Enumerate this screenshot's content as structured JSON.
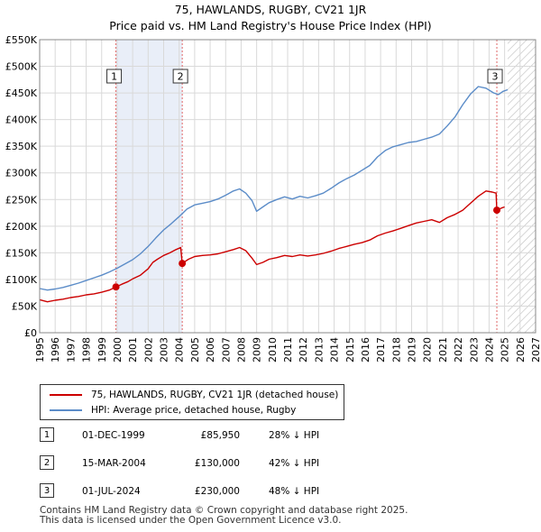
{
  "title_line1": "75, HAWLANDS, RUGBY, CV21 1JR",
  "title_line2": "Price paid vs. HM Land Registry's House Price Index (HPI)",
  "chart_data": {
    "type": "line",
    "title": "75, HAWLANDS, RUGBY, CV21 1JR — Price paid vs. HM Land Registry's House Price Index (HPI)",
    "xlabel": "",
    "ylabel": "",
    "xlim": [
      1995,
      2027
    ],
    "ylim": [
      0,
      550000
    ],
    "x_ticks": [
      "1995",
      "1996",
      "1997",
      "1998",
      "1999",
      "2000",
      "2001",
      "2002",
      "2003",
      "2004",
      "2005",
      "2006",
      "2007",
      "2008",
      "2009",
      "2010",
      "2011",
      "2012",
      "2013",
      "2014",
      "2015",
      "2016",
      "2017",
      "2018",
      "2019",
      "2020",
      "2021",
      "2022",
      "2023",
      "2024",
      "2025",
      "2026",
      "2027"
    ],
    "y_ticks": [
      {
        "value": 0,
        "label": "£0"
      },
      {
        "value": 50000,
        "label": "£50K"
      },
      {
        "value": 100000,
        "label": "£100K"
      },
      {
        "value": 150000,
        "label": "£150K"
      },
      {
        "value": 200000,
        "label": "£200K"
      },
      {
        "value": 250000,
        "label": "£250K"
      },
      {
        "value": 300000,
        "label": "£300K"
      },
      {
        "value": 350000,
        "label": "£350K"
      },
      {
        "value": 400000,
        "label": "£400K"
      },
      {
        "value": 450000,
        "label": "£450K"
      },
      {
        "value": 500000,
        "label": "£500K"
      },
      {
        "value": 550000,
        "label": "£550K"
      }
    ],
    "grid": true,
    "shaded_ranges": [
      [
        1999.92,
        2004.2
      ]
    ],
    "forecast_start": 2025.2,
    "series": [
      {
        "name": "75, HAWLANDS, RUGBY, CV21 1JR (detached house)",
        "color": "#cc0000",
        "x": [
          1995.0,
          1995.5,
          1996.0,
          1996.5,
          1997.0,
          1997.5,
          1998.0,
          1998.5,
          1999.0,
          1999.5,
          1999.92,
          2000.3,
          2000.7,
          2001.0,
          2001.5,
          2002.0,
          2002.3,
          2002.6,
          2003.0,
          2003.4,
          2003.8,
          2004.1,
          2004.2,
          2004.35,
          2004.6,
          2005.0,
          2005.5,
          2006.0,
          2006.5,
          2007.0,
          2007.5,
          2007.9,
          2008.3,
          2008.7,
          2009.0,
          2009.4,
          2009.8,
          2010.3,
          2010.8,
          2011.3,
          2011.8,
          2012.3,
          2012.8,
          2013.3,
          2013.8,
          2014.3,
          2014.8,
          2015.3,
          2015.8,
          2016.3,
          2016.8,
          2017.3,
          2017.8,
          2018.3,
          2018.8,
          2019.3,
          2019.8,
          2020.3,
          2020.8,
          2021.3,
          2021.8,
          2022.3,
          2022.8,
          2023.3,
          2023.8,
          2024.2,
          2024.45,
          2024.5,
          2024.8,
          2025.0
        ],
        "values": [
          62000,
          58000,
          61000,
          63000,
          66000,
          68000,
          71000,
          73000,
          76000,
          80000,
          85950,
          91000,
          96000,
          101000,
          108000,
          120000,
          132000,
          138000,
          145000,
          150000,
          156000,
          160000,
          130000,
          133000,
          138000,
          143000,
          145000,
          146000,
          148000,
          152000,
          156000,
          160000,
          154000,
          140000,
          128000,
          132000,
          138000,
          141000,
          145000,
          143000,
          146000,
          144000,
          146000,
          149000,
          153000,
          158000,
          162000,
          166000,
          169000,
          174000,
          182000,
          187000,
          191000,
          196000,
          201000,
          206000,
          209000,
          212000,
          207000,
          216000,
          222000,
          230000,
          243000,
          256000,
          266000,
          264000,
          262000,
          230000,
          234000,
          236000
        ]
      },
      {
        "name": "HPI: Average price, detached house, Rugby",
        "color": "#5b8cc8",
        "x": [
          1995.0,
          1995.5,
          1996.0,
          1996.5,
          1997.0,
          1997.5,
          1998.0,
          1998.5,
          1999.0,
          1999.5,
          2000.0,
          2000.5,
          2001.0,
          2001.5,
          2002.0,
          2002.5,
          2003.0,
          2003.5,
          2004.0,
          2004.5,
          2005.0,
          2005.5,
          2006.0,
          2006.5,
          2007.0,
          2007.5,
          2007.9,
          2008.3,
          2008.7,
          2009.0,
          2009.4,
          2009.8,
          2010.3,
          2010.8,
          2011.3,
          2011.8,
          2012.3,
          2012.8,
          2013.3,
          2013.8,
          2014.3,
          2014.8,
          2015.3,
          2015.8,
          2016.3,
          2016.8,
          2017.3,
          2017.8,
          2018.3,
          2018.8,
          2019.3,
          2019.8,
          2020.3,
          2020.8,
          2021.3,
          2021.8,
          2022.3,
          2022.8,
          2023.3,
          2023.8,
          2024.3,
          2024.6,
          2024.9,
          2025.2
        ],
        "values": [
          83000,
          80000,
          82000,
          85000,
          89000,
          93000,
          98000,
          103000,
          108000,
          114000,
          121000,
          129000,
          137000,
          148000,
          162000,
          178000,
          193000,
          205000,
          218000,
          232000,
          240000,
          243000,
          246000,
          251000,
          258000,
          266000,
          270000,
          262000,
          248000,
          228000,
          236000,
          244000,
          250000,
          255000,
          251000,
          256000,
          253000,
          257000,
          262000,
          271000,
          281000,
          289000,
          296000,
          305000,
          314000,
          330000,
          342000,
          349000,
          353000,
          357000,
          359000,
          363000,
          367000,
          373000,
          388000,
          405000,
          428000,
          448000,
          462000,
          459000,
          450000,
          447000,
          453000,
          456000
        ]
      }
    ],
    "sales": [
      {
        "num": "1",
        "x": 1999.92,
        "value": 85950
      },
      {
        "num": "2",
        "x": 2004.2,
        "value": 130000
      },
      {
        "num": "3",
        "x": 2024.5,
        "value": 230000
      }
    ]
  },
  "legend": {
    "items": [
      {
        "label": "75, HAWLANDS, RUGBY, CV21 1JR (detached house)",
        "color": "#cc0000"
      },
      {
        "label": "HPI: Average price, detached house, Rugby",
        "color": "#5b8cc8"
      }
    ]
  },
  "sales_table": [
    {
      "num": "1",
      "date": "01-DEC-1999",
      "price": "£85,950",
      "hpi": "28% ↓ HPI"
    },
    {
      "num": "2",
      "date": "15-MAR-2004",
      "price": "£130,000",
      "hpi": "42% ↓ HPI"
    },
    {
      "num": "3",
      "date": "01-JUL-2024",
      "price": "£230,000",
      "hpi": "48% ↓ HPI"
    }
  ],
  "footer": {
    "line1": "Contains HM Land Registry data © Crown copyright and database right 2025.",
    "line2": "This data is licensed under the Open Government Licence v3.0."
  }
}
